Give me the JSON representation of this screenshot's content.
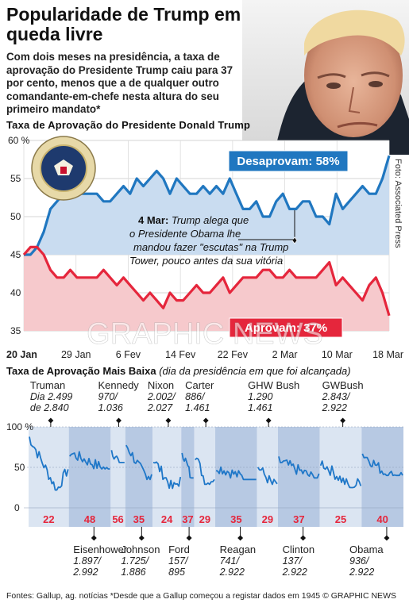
{
  "title": "Popularidade de Trump em queda livre",
  "intro": "Com dois meses na presidência, a taxa de aprovação do Presidente Trump caiu para 37 por cento, menos que a de qualquer outro comandante-em-chefe nesta altura do seu primeiro mandato*",
  "photo_credit": "Foto: Associated Press",
  "seal_text": "SEAL OF THE PRESIDENT OF THE UNITED STATES",
  "watermark": "GRAPHIC NEWS",
  "chart1_title": "Taxa de Aprovação do Presidente Donald Trump",
  "chart2_title": "Taxa de Aprovação Mais Baixa",
  "chart2_subtitle": "(dia da presidência em que foi alcançada)",
  "footer": "Fontes: Gallup, ag. notícias  *Desde que a Gallup começou a registar dados em 1945 © GRAPHIC NEWS",
  "chart_data": [
    {
      "type": "line",
      "title": "Taxa de Aprovação do Presidente Donald Trump",
      "x_ticks": [
        "20 Jan",
        "29 Jan",
        "6 Fev",
        "14 Fev",
        "22 Fev",
        "2 Mar",
        "10 Mar",
        "18 Mar"
      ],
      "y_ticks": [
        "60 %",
        "55",
        "50",
        "45",
        "40",
        "35"
      ],
      "ylim": [
        35,
        60
      ],
      "series": [
        {
          "name": "Desaprovam",
          "label": "Desaprovam: 58%",
          "color": "#2077c0",
          "values": [
            45,
            45,
            46,
            48,
            51,
            52,
            53,
            53,
            53,
            53,
            53,
            53,
            52,
            52,
            53,
            54,
            53,
            55,
            54,
            55,
            56,
            55,
            53,
            55,
            54,
            53,
            53,
            54,
            53,
            54,
            53,
            55,
            53,
            51,
            51,
            52,
            50,
            50,
            52,
            53,
            51,
            51,
            52,
            52,
            50,
            50,
            49,
            53,
            51,
            52,
            53,
            54,
            53,
            53,
            55,
            58
          ]
        },
        {
          "name": "Aprovam",
          "label": "Aprovam: 37%",
          "color": "#e5263c",
          "values": [
            45,
            46,
            46,
            45,
            43,
            42,
            42,
            43,
            42,
            42,
            42,
            42,
            43,
            42,
            41,
            42,
            41,
            40,
            39,
            40,
            39,
            38,
            40,
            39,
            39,
            40,
            41,
            40,
            40,
            41,
            42,
            40,
            41,
            42,
            42,
            42,
            43,
            43,
            42,
            42,
            43,
            42,
            42,
            42,
            42,
            43,
            44,
            41,
            42,
            41,
            40,
            39,
            41,
            42,
            40,
            37
          ]
        }
      ],
      "annotation": {
        "date": "4 Mar:",
        "text": "Trump alega que o Presidente Obama lhe mandou fazer \"escutas\" na Trump Tower, pouco antes da sua vitória"
      }
    },
    {
      "type": "area",
      "title": "Taxa de Aprovação Mais Baixa",
      "y_ticks": [
        "100 %",
        "50",
        "0"
      ],
      "ylim": [
        0,
        100
      ],
      "presidents": [
        {
          "name": "Truman",
          "day": "Dia 2.499",
          "days": "de 2.840",
          "low": "22",
          "position": "top"
        },
        {
          "name": "Eisenhower",
          "day": "1.897/",
          "days": "2.992",
          "low": "48",
          "position": "bottom"
        },
        {
          "name": "Kennedy",
          "day": "970/",
          "days": "1.036",
          "low": "56",
          "position": "top"
        },
        {
          "name": "Johnson",
          "day": "1.725/",
          "days": "1.886",
          "low": "35",
          "position": "bottom"
        },
        {
          "name": "Nixon",
          "day": "2.002/",
          "days": "2.027",
          "low": "24",
          "position": "top"
        },
        {
          "name": "Ford",
          "day": "157/",
          "days": "895",
          "low": "37",
          "position": "bottom"
        },
        {
          "name": "Carter",
          "day": "886/",
          "days": "1.461",
          "low": "29",
          "position": "top"
        },
        {
          "name": "Reagan",
          "day": "741/",
          "days": "2.922",
          "low": "35",
          "position": "bottom"
        },
        {
          "name": "GHW Bush",
          "day": "1.290",
          "days": "1.461",
          "low": "29",
          "position": "top"
        },
        {
          "name": "Clinton",
          "day": "137/",
          "days": "2.922",
          "low": "37",
          "position": "bottom"
        },
        {
          "name": "GWBush",
          "day": "2.843/",
          "days": "2.922",
          "low": "25",
          "position": "top"
        },
        {
          "name": "Obama",
          "day": "936/",
          "days": "2.922",
          "low": "40",
          "position": "bottom"
        }
      ]
    }
  ]
}
